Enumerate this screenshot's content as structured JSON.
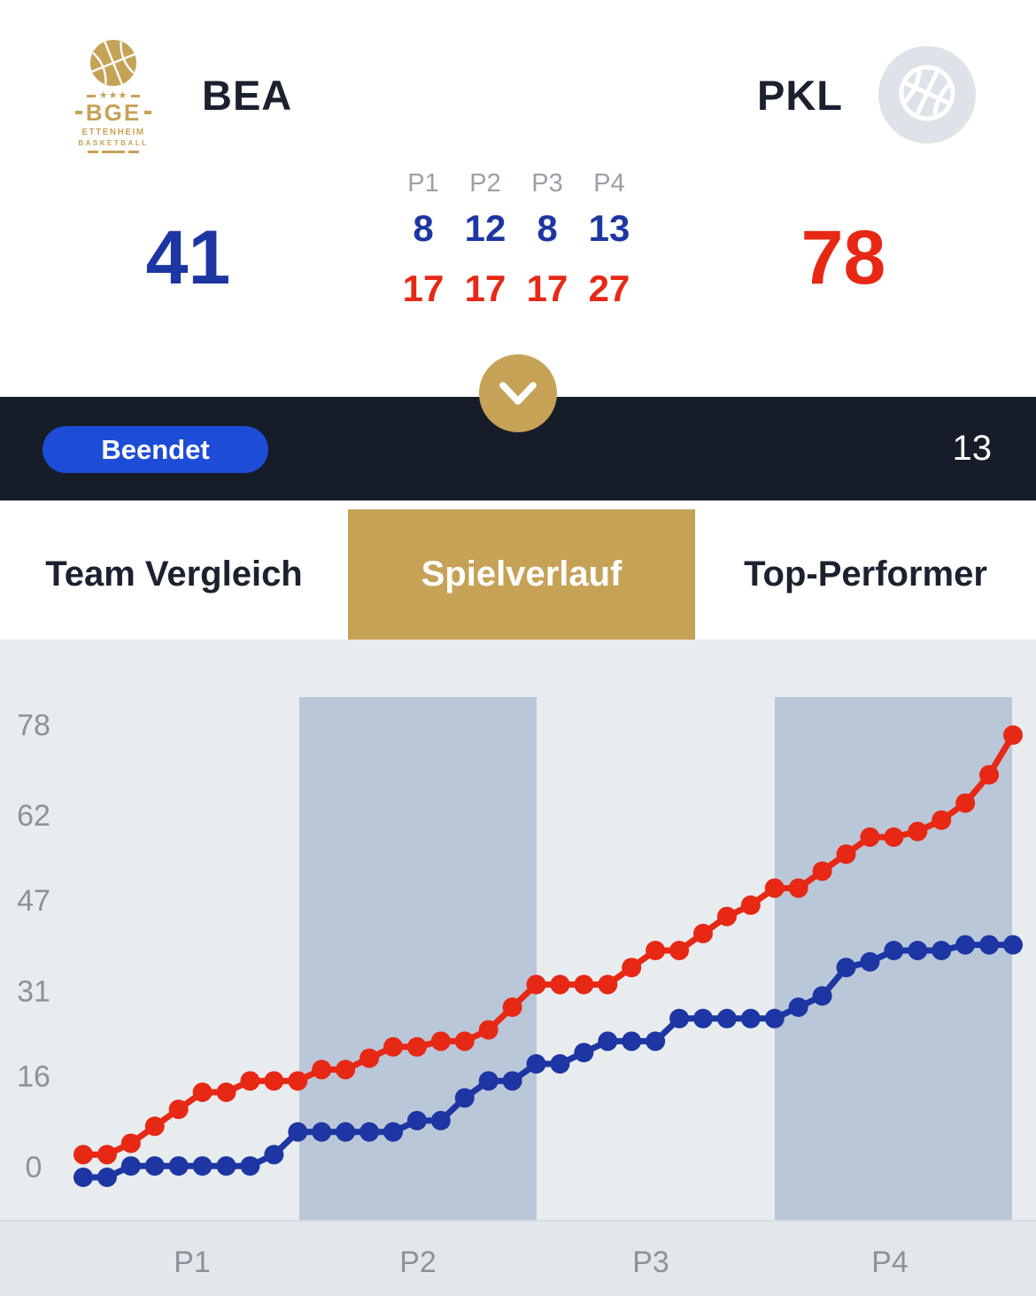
{
  "header": {
    "home": {
      "code": "BEA",
      "logo": {
        "line1": "BGE",
        "stars": "★★★",
        "line2": "ETTENHEIM",
        "line3": "BASKETBALL"
      }
    },
    "away": {
      "code": "PKL"
    },
    "home_score": "41",
    "away_score": "78",
    "quarters": {
      "labels": [
        "P1",
        "P2",
        "P3",
        "P4"
      ],
      "home": [
        "8",
        "12",
        "8",
        "13"
      ],
      "away": [
        "17",
        "17",
        "17",
        "27"
      ]
    }
  },
  "status_bar": {
    "status_label": "Beendet",
    "right_value": "13"
  },
  "tabs": [
    {
      "label": "Team Vergleich",
      "active": false
    },
    {
      "label": "Spielverlauf",
      "active": true
    },
    {
      "label": "Top-Performer",
      "active": false
    }
  ],
  "colors": {
    "accent_gold": "#c6a257",
    "primary_blue": "#1d36a3",
    "primary_red": "#e72815",
    "status_pill_blue": "#1d4cd7",
    "dark_bar": "#171c29",
    "chart_bg": "#e8ecef",
    "band": "#bac7d8",
    "strip": "#e2e7ec",
    "axis_gray": "#8d929a"
  },
  "chart_data": {
    "type": "line",
    "title": "Spielverlauf",
    "x_labels": [
      "P1",
      "P2",
      "P3",
      "P4"
    ],
    "y_ticks": [
      0,
      16,
      31,
      47,
      62,
      78
    ],
    "ylim": [
      0,
      78
    ],
    "grid": false,
    "legend_position": "none",
    "shaded_quarters": [
      "P2",
      "P4"
    ],
    "series": [
      {
        "name": "PKL",
        "color": "#e72815",
        "values": [
          4,
          4,
          6,
          9,
          12,
          15,
          15,
          17,
          17,
          17,
          19,
          19,
          21,
          23,
          23,
          24,
          24,
          26,
          30,
          34,
          34,
          34,
          34,
          37,
          40,
          40,
          43,
          46,
          48,
          51,
          51,
          54,
          57,
          60,
          60,
          61,
          63,
          66,
          71,
          78
        ]
      },
      {
        "name": "BEA",
        "color": "#1d36a3",
        "values": [
          0,
          0,
          2,
          2,
          2,
          2,
          2,
          2,
          4,
          8,
          8,
          8,
          8,
          8,
          10,
          10,
          14,
          17,
          17,
          20,
          20,
          22,
          24,
          24,
          24,
          28,
          28,
          28,
          28,
          28,
          30,
          32,
          37,
          38,
          40,
          40,
          40,
          41,
          41,
          41
        ]
      }
    ]
  }
}
